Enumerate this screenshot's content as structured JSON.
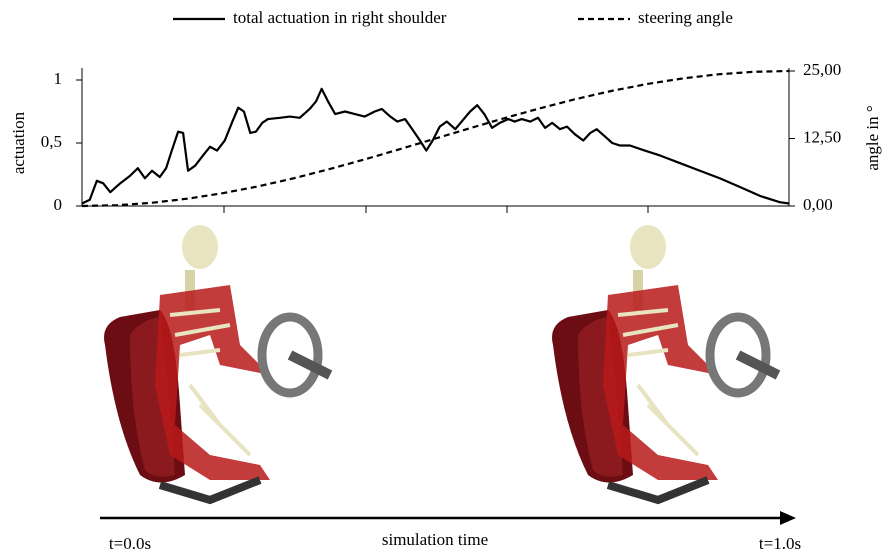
{
  "chart_data": {
    "type": "line",
    "y_label": "actuation",
    "y2_label": "angle in °",
    "xlim": [
      0,
      1
    ],
    "ylim": [
      0,
      1
    ],
    "yticks": [
      0,
      {
        "value": 0.5,
        "label": "0,5"
      },
      1
    ],
    "y2lim": [
      0,
      25
    ],
    "y2ticks": [
      {
        "value": 0,
        "label": "0,00"
      },
      {
        "value": 12.5,
        "label": "12,50"
      },
      {
        "value": 25,
        "label": "25,00"
      }
    ],
    "series": [
      {
        "name": "total actuation in right shoulder",
        "color": "#000000",
        "linestyle": "solid",
        "x": [
          0,
          0.011,
          0.021,
          0.03,
          0.04,
          0.054,
          0.068,
          0.079,
          0.089,
          0.099,
          0.11,
          0.119,
          0.127,
          0.136,
          0.143,
          0.15,
          0.16,
          0.171,
          0.181,
          0.191,
          0.202,
          0.212,
          0.221,
          0.229,
          0.238,
          0.246,
          0.255,
          0.263,
          0.28,
          0.294,
          0.308,
          0.322,
          0.331,
          0.339,
          0.348,
          0.358,
          0.372,
          0.386,
          0.4,
          0.414,
          0.424,
          0.436,
          0.446,
          0.457,
          0.467,
          0.478,
          0.487,
          0.496,
          0.506,
          0.516,
          0.528,
          0.537,
          0.549,
          0.559,
          0.569,
          0.58,
          0.591,
          0.603,
          0.612,
          0.622,
          0.634,
          0.645,
          0.655,
          0.665,
          0.676,
          0.686,
          0.697,
          0.709,
          0.719,
          0.728,
          0.74,
          0.75,
          0.761,
          0.775,
          0.796,
          0.818,
          0.846,
          0.874,
          0.902,
          0.931,
          0.959,
          0.987,
          1
        ],
        "values": [
          0.02,
          0.05,
          0.2,
          0.18,
          0.11,
          0.18,
          0.24,
          0.3,
          0.22,
          0.28,
          0.23,
          0.3,
          0.44,
          0.59,
          0.58,
          0.28,
          0.32,
          0.4,
          0.47,
          0.44,
          0.52,
          0.66,
          0.78,
          0.75,
          0.58,
          0.59,
          0.66,
          0.69,
          0.7,
          0.71,
          0.7,
          0.77,
          0.83,
          0.93,
          0.83,
          0.73,
          0.75,
          0.73,
          0.71,
          0.75,
          0.77,
          0.71,
          0.67,
          0.69,
          0.61,
          0.52,
          0.44,
          0.52,
          0.63,
          0.67,
          0.61,
          0.67,
          0.75,
          0.8,
          0.73,
          0.62,
          0.66,
          0.69,
          0.67,
          0.69,
          0.67,
          0.7,
          0.62,
          0.66,
          0.61,
          0.63,
          0.57,
          0.52,
          0.58,
          0.61,
          0.55,
          0.5,
          0.48,
          0.48,
          0.44,
          0.4,
          0.34,
          0.28,
          0.22,
          0.15,
          0.08,
          0.03,
          0.02
        ]
      },
      {
        "name": "steering angle",
        "color": "#000000",
        "linestyle": "dashed",
        "axis": "y2",
        "x": [
          0,
          0.05,
          0.1,
          0.15,
          0.2,
          0.25,
          0.3,
          0.35,
          0.4,
          0.45,
          0.5,
          0.55,
          0.6,
          0.65,
          0.7,
          0.75,
          0.8,
          0.85,
          0.9,
          0.95,
          1
        ],
        "values": [
          0,
          0.15,
          0.61,
          1.37,
          2.39,
          3.66,
          5.15,
          6.83,
          8.64,
          10.54,
          12.5,
          14.46,
          16.36,
          18.17,
          19.85,
          21.34,
          22.61,
          23.63,
          24.39,
          24.85,
          25
        ]
      }
    ],
    "annotations": [
      "t=0.0s",
      "simulation time",
      "t=1.0s"
    ]
  }
}
